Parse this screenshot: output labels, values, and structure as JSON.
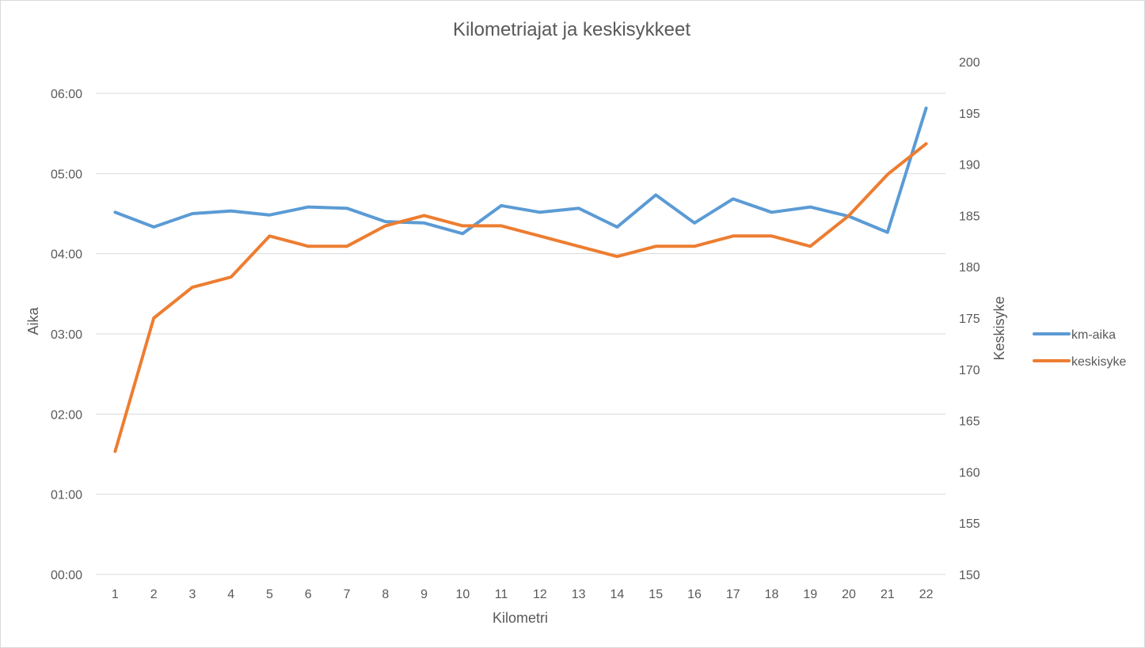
{
  "chart_data": {
    "type": "line",
    "title": "Kilometriajat ja keskisykkeet",
    "xlabel": "Kilometri",
    "ylabel": "Aika",
    "y2label": "Keskisyke",
    "categories": [
      "1",
      "2",
      "3",
      "4",
      "5",
      "6",
      "7",
      "8",
      "9",
      "10",
      "11",
      "12",
      "13",
      "14",
      "15",
      "16",
      "17",
      "18",
      "19",
      "20",
      "21",
      "22"
    ],
    "y_ticks": [
      "00:00",
      "01:00",
      "02:00",
      "03:00",
      "04:00",
      "05:00",
      "06:00"
    ],
    "ylim_seconds": [
      0,
      360
    ],
    "y2_ticks": [
      "150",
      "155",
      "160",
      "165",
      "170",
      "175",
      "180",
      "185",
      "190",
      "195",
      "200"
    ],
    "y2lim": [
      150,
      200
    ],
    "grid": true,
    "legend_position": "right",
    "series": [
      {
        "name": "km-aika",
        "axis": "primary",
        "color": "#5b9bd5",
        "values": [
          "04:31",
          "04:20",
          "04:30",
          "04:32",
          "04:29",
          "04:35",
          "04:34",
          "04:24",
          "04:23",
          "04:15",
          "04:36",
          "04:31",
          "04:34",
          "04:20",
          "04:44",
          "04:23",
          "04:41",
          "04:31",
          "04:35",
          "04:28",
          "04:16",
          "05:49"
        ]
      },
      {
        "name": "keskisyke",
        "axis": "secondary",
        "color": "#ed7d31",
        "values": [
          162,
          175,
          178,
          179,
          183,
          182,
          182,
          184,
          185,
          184,
          184,
          183,
          182,
          181,
          182,
          182,
          183,
          183,
          182,
          185,
          189,
          192
        ]
      }
    ]
  }
}
